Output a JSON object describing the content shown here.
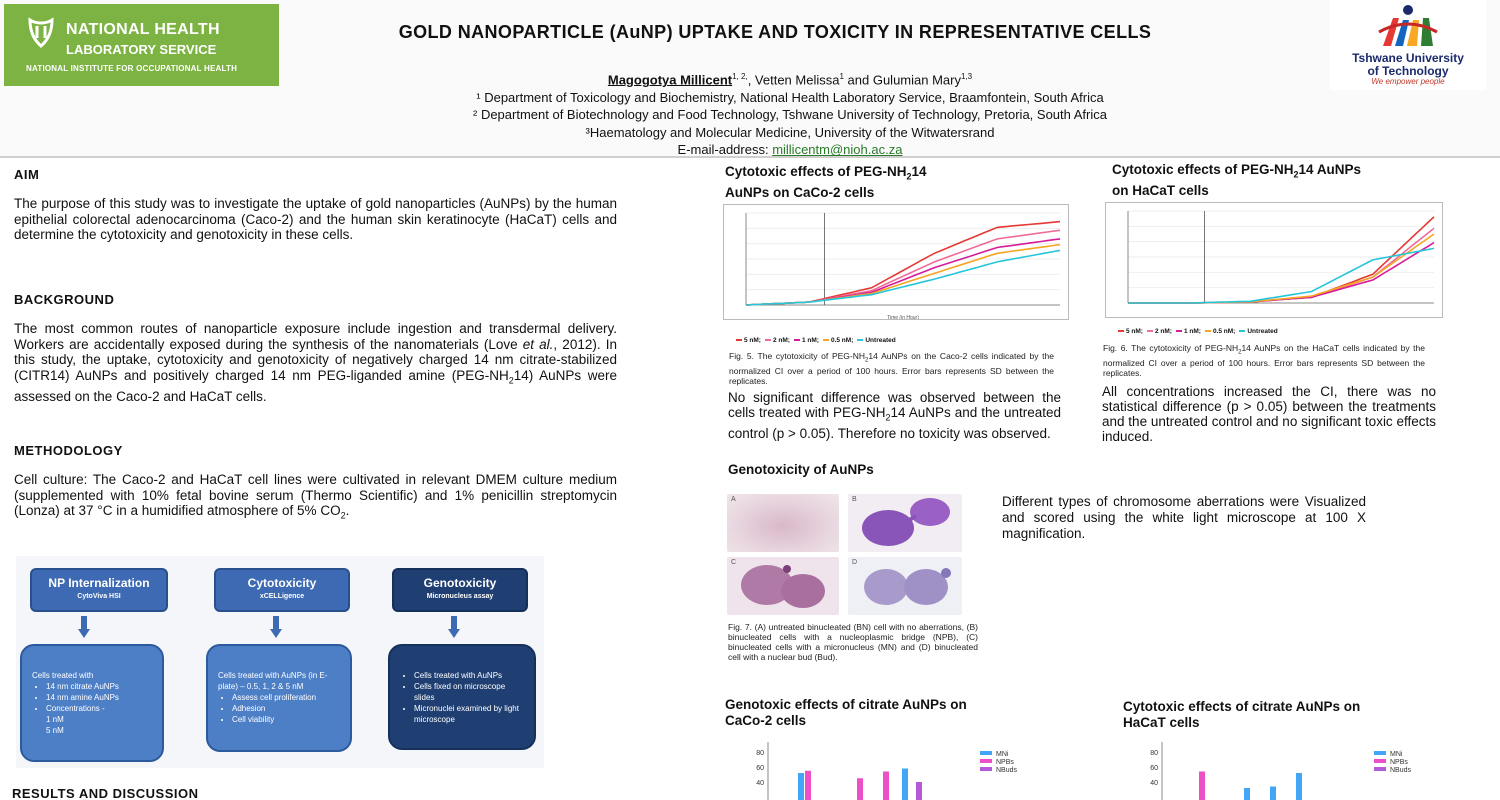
{
  "header": {
    "org_line1": "NATIONAL HEALTH",
    "org_line2": "LABORATORY SERVICE",
    "org_line3": "NATIONAL INSTITUTE FOR OCCUPATIONAL HEALTH",
    "title": "GOLD NANOPARTICLE (AuNP) UPTAKE AND TOXICITY IN REPRESENTATIVE CELLS",
    "author_main": "Magogotya Millicent",
    "author_main_sup": "1, 2,",
    "author_rest": ", Vetten Melissa",
    "author_rest_sup": "1",
    "author_rest2": " and Gulumian Mary",
    "author_rest2_sup": "1,3",
    "affil1": "¹ Department of Toxicology and Biochemistry, National Health Laboratory Service, Braamfontein, South Africa",
    "affil2": "² Department of Biotechnology and Food Technology, Tshwane University of Technology, Pretoria, South Africa",
    "affil3": "³Haematology and Molecular Medicine, University of the Witwatersrand",
    "email_label": "E-mail-address: ",
    "email": "millicentm@nioh.ac.za",
    "tut_line1": "Tshwane University",
    "tut_line2": "of Technology",
    "tut_tagline": "We empower people"
  },
  "aim": {
    "heading": "AIM",
    "text": "The purpose of this study was to investigate the uptake of gold nanoparticles (AuNPs) by the human epithelial colorectal adenocarcinoma (Caco-2) and the human skin keratinocyte (HaCaT) cells and determine the cytotoxicity and genotoxicity in these cells."
  },
  "background": {
    "heading": "BACKGROUND",
    "text_a": "The most common routes of nanoparticle exposure include ingestion and transdermal delivery. Workers are accidentally exposed during the synthesis of the nanomaterials (Love ",
    "text_italic": "et al.",
    "text_b": ", 2012). In this study, the uptake, cytotoxicity and genotoxicity of negatively charged 14 nm citrate-stabilized (CITR14) AuNPs and positively charged 14 nm PEG-liganded amine (PEG-NH",
    "text_sub": "2",
    "text_c": "14) AuNPs were assessed on the Caco-2 and HaCaT cells."
  },
  "methodology": {
    "heading": "METHODOLOGY",
    "text_a": "Cell culture: The Caco-2 and HaCaT cell lines were cultivated in relevant DMEM culture medium (supplemented with 10% fetal bovine serum (Thermo Scientific) and 1% penicillin streptomycin (Lonza)  at 37 °C in a humidified atmosphere of 5% CO",
    "text_sub": "2",
    "text_b": "."
  },
  "flow": {
    "boxes": [
      {
        "title": "NP Internalization",
        "sub": "CytoViva HSI"
      },
      {
        "title": "Cytotoxicity",
        "sub": "xCELLigence"
      },
      {
        "title": "Genotoxicity",
        "sub": "Micronucleus assay"
      }
    ],
    "list1_intro": "Cells treated with",
    "list1": [
      "14 nm citrate AuNPs",
      "14 nm amine AuNPs",
      "Concentrations -",
      "1 nM",
      "5 nM"
    ],
    "list2_intro": "Cells treated with AuNPs (in E-plate) – 0.5, 1, 2 & 5 nM",
    "list2": [
      "Assess cell proliferation",
      "Adhesion",
      "Cell viability"
    ],
    "list3": [
      "Cells treated with AuNPs",
      "Cells fixed on microscope slides",
      "Micronuclei examined by light microscope"
    ]
  },
  "results_heading": "RESULTS AND DISCUSSION",
  "cyto_caco": {
    "title_a": "Cytotoxic effects of PEG-NH",
    "title_sub": "2",
    "title_b": "14",
    "title_line2": "AuNPs on CaCo-2 cells",
    "caption_a": "Fig. 5. The cytotoxicity of PEG-NH",
    "caption_sub": "2",
    "caption_b": "14 AuNPs on the Caco-2 cells indicated by the normalized CI over a period of 100 hours. Error bars represents SD between the replicates.",
    "text_a": "No significant difference was observed between the cells treated with PEG-NH",
    "text_sub": "2",
    "text_b": "14 AuNPs and the untreated control (p > 0.05). Therefore no toxicity was observed."
  },
  "cyto_hacat": {
    "title_a": "Cytotoxic effects of PEG-NH",
    "title_sub": "2",
    "title_b": "14 AuNPs",
    "title_line2": "on HaCaT cells",
    "caption_a": "Fig. 6. The cytotoxicity of PEG-NH",
    "caption_sub": "2",
    "caption_b": "14 AuNPs on the HaCaT cells indicated by the normalized CI over a period of 100 hours. Error bars represents SD between the replicates.",
    "text": "All concentrations increased the CI, there was no statistical difference (p > 0.05) between the treatments and the untreated control and no significant toxic effects induced."
  },
  "legend": [
    "5 nM;",
    "2 nM;",
    "1 nM;",
    "0.5 nM;",
    "Untreated"
  ],
  "legend_colors": [
    "#e53935",
    "#ef6c9a",
    "#d81b9a",
    "#f5a623",
    "#26c6da"
  ],
  "geno": {
    "heading": "Genotoxicity of AuNPs",
    "panel_labels": [
      "A",
      "B",
      "C",
      "D"
    ],
    "text": "Different types of chromosome aberrations were  Visualized and scored using the white light microscope at 100 X magnification.",
    "caption": "Fig. 7. (A) untreated binucleated (BN) cell with no aberrations, (B) binucleated cells with a nucleoplasmic bridge (NPB), (C) binucleated cells with a micronucleus (MN) and (D) binucleated cell with a nuclear bud (Bud)."
  },
  "geno_caco": {
    "title_line1": "Genotoxic effects of citrate AuNPs on",
    "title_line2": "CaCo-2 cells"
  },
  "cyto_citrate_hacat": {
    "title_line1": "Cytotoxic effects of citrate AuNPs on",
    "title_line2": "HaCaT cells"
  },
  "bar_legend": [
    "MNi",
    "NPBs",
    "NBuds"
  ],
  "bar_colors": [
    "#42a5f5",
    "#ec4fc6",
    "#b45ad6"
  ],
  "chart_data": [
    {
      "type": "line",
      "title": "Cytotoxic effects of PEG-NH2 14 AuNPs on CaCo-2 cells",
      "xlabel": "Time (in Hour)",
      "xlim": [
        0,
        100
      ],
      "series": [
        {
          "name": "5 nM",
          "x": [
            0,
            20,
            40,
            60,
            80,
            100
          ],
          "y": [
            0.0,
            0.05,
            0.3,
            0.9,
            1.35,
            1.45
          ]
        },
        {
          "name": "2 nM",
          "x": [
            0,
            20,
            40,
            60,
            80,
            100
          ],
          "y": [
            0.0,
            0.05,
            0.25,
            0.75,
            1.15,
            1.3
          ]
        },
        {
          "name": "1 nM",
          "x": [
            0,
            20,
            40,
            60,
            80,
            100
          ],
          "y": [
            0.0,
            0.05,
            0.22,
            0.65,
            1.0,
            1.15
          ]
        },
        {
          "name": "0.5 nM",
          "x": [
            0,
            20,
            40,
            60,
            80,
            100
          ],
          "y": [
            0.0,
            0.05,
            0.2,
            0.55,
            0.9,
            1.05
          ]
        },
        {
          "name": "Untreated",
          "x": [
            0,
            20,
            40,
            60,
            80,
            100
          ],
          "y": [
            0.0,
            0.05,
            0.18,
            0.45,
            0.75,
            0.95
          ]
        }
      ]
    },
    {
      "type": "line",
      "title": "Cytotoxic effects of PEG-NH2 14 AuNPs on HaCaT cells",
      "xlabel": "",
      "xlim": [
        0,
        100
      ],
      "series": [
        {
          "name": "5 nM",
          "x": [
            0,
            20,
            40,
            60,
            80,
            100
          ],
          "y": [
            0.0,
            0.0,
            0.02,
            0.1,
            0.5,
            1.5
          ]
        },
        {
          "name": "2 nM",
          "x": [
            0,
            20,
            40,
            60,
            80,
            100
          ],
          "y": [
            0.0,
            0.0,
            0.02,
            0.1,
            0.45,
            1.3
          ]
        },
        {
          "name": "1 nM",
          "x": [
            0,
            20,
            40,
            60,
            80,
            100
          ],
          "y": [
            0.0,
            0.0,
            0.02,
            0.1,
            0.4,
            1.05
          ]
        },
        {
          "name": "0.5 nM",
          "x": [
            0,
            20,
            40,
            60,
            80,
            100
          ],
          "y": [
            0.0,
            0.0,
            0.02,
            0.12,
            0.45,
            1.2
          ]
        },
        {
          "name": "Untreated",
          "x": [
            0,
            20,
            40,
            60,
            80,
            100
          ],
          "y": [
            0.0,
            0.0,
            0.03,
            0.2,
            0.75,
            0.95
          ]
        }
      ]
    },
    {
      "type": "bar",
      "title": "Genotoxic effects of citrate AuNPs on CaCo-2 cells",
      "ylim": [
        0,
        80
      ],
      "yticks": [
        "80",
        "60",
        "40"
      ],
      "series": [
        {
          "name": "MNi",
          "values": [
            52,
            0,
            0,
            0,
            58
          ]
        },
        {
          "name": "NPBs",
          "values": [
            55,
            0,
            45,
            54,
            0
          ]
        },
        {
          "name": "NBuds",
          "values": [
            0,
            0,
            0,
            0,
            40
          ]
        }
      ]
    },
    {
      "type": "bar",
      "title": "Cytotoxic effects of citrate AuNPs on HaCaT cells",
      "ylim": [
        0,
        80
      ],
      "yticks": [
        "80",
        "60",
        "40"
      ],
      "series": [
        {
          "name": "MNi",
          "values": [
            0,
            0,
            32,
            34,
            52
          ]
        },
        {
          "name": "NPBs",
          "values": [
            54,
            0,
            0,
            0,
            0
          ]
        },
        {
          "name": "NBuds",
          "values": [
            0,
            0,
            0,
            0,
            0
          ]
        }
      ]
    }
  ]
}
